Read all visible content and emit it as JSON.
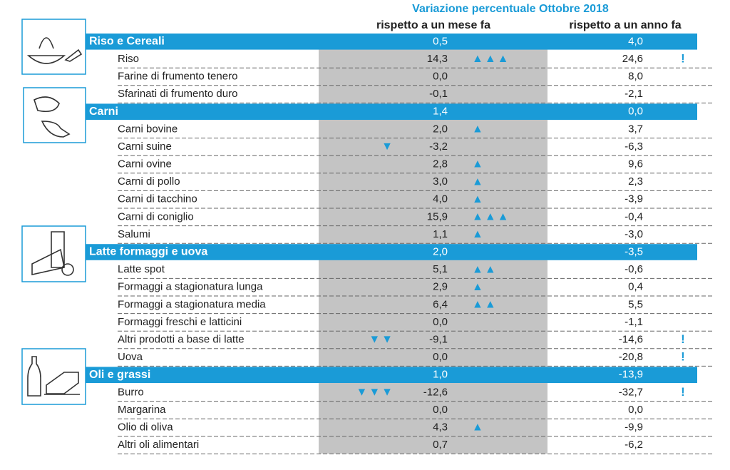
{
  "header": {
    "title": "Variazione percentuale Ottobre 2018",
    "col_month": "rispetto a un mese fa",
    "col_year": "rispetto a un anno fa"
  },
  "groups": [
    {
      "name": "Riso e Cereali",
      "month": "0,5",
      "year": "4,0",
      "items": [
        {
          "name": "Riso",
          "month": "14,3",
          "year": "24,6",
          "signal": "▲▲▲",
          "alert": "!"
        },
        {
          "name": "Farine di frumento tenero",
          "month": "0,0",
          "year": "8,0"
        },
        {
          "name": "Sfarinati di frumento duro",
          "month": "-0,1",
          "year": "-2,1"
        }
      ]
    },
    {
      "name": "Carni",
      "month": "1,4",
      "year": "0,0",
      "items": [
        {
          "name": "Carni bovine",
          "month": "2,0",
          "year": "3,7",
          "signal": "▲"
        },
        {
          "name": "Carni suine",
          "month": "-3,2",
          "year": "-6,3",
          "signal": "▼"
        },
        {
          "name": "Carni ovine",
          "month": "2,8",
          "year": "9,6",
          "signal": "▲"
        },
        {
          "name": "Carni di pollo",
          "month": "3,0",
          "year": "2,3",
          "signal": "▲"
        },
        {
          "name": "Carni di tacchino",
          "month": "4,0",
          "year": "-3,9",
          "signal": "▲"
        },
        {
          "name": "Carni di coniglio",
          "month": "15,9",
          "year": "-0,4",
          "signal": "▲▲▲"
        },
        {
          "name": "Salumi",
          "month": "1,1",
          "year": "-3,0",
          "signal": "▲"
        }
      ]
    },
    {
      "name": "Latte formaggi e uova",
      "month": "2,0",
      "year": "-3,5",
      "items": [
        {
          "name": "Latte spot",
          "month": "5,1",
          "year": "-0,6",
          "signal": "▲▲"
        },
        {
          "name": "Formaggi a stagionatura lunga",
          "month": "2,9",
          "year": "0,4",
          "signal": "▲"
        },
        {
          "name": "Formaggi a stagionatura media",
          "month": "6,4",
          "year": "5,5",
          "signal": "▲▲"
        },
        {
          "name": "Formaggi freschi e latticini",
          "month": "0,0",
          "year": "-1,1"
        },
        {
          "name": "Altri prodotti a base di latte",
          "month": "-9,1",
          "year": "-14,6",
          "signal": "▼▼",
          "alert": "!"
        },
        {
          "name": "Uova",
          "month": "0,0",
          "year": "-20,8",
          "alert": "!"
        }
      ]
    },
    {
      "name": "Oli e grassi",
      "month": "1,0",
      "year": "-13,9",
      "items": [
        {
          "name": "Burro",
          "month": "-12,6",
          "year": "-32,7",
          "signal": "▼▼▼",
          "alert": "!"
        },
        {
          "name": "Margarina",
          "month": "0,0",
          "year": "0,0"
        },
        {
          "name": "Olio di oliva",
          "month": "4,3",
          "year": "-9,9",
          "signal": "▲"
        },
        {
          "name": "Altri oli alimentari",
          "month": "0,7",
          "year": "-6,2"
        }
      ]
    }
  ]
}
